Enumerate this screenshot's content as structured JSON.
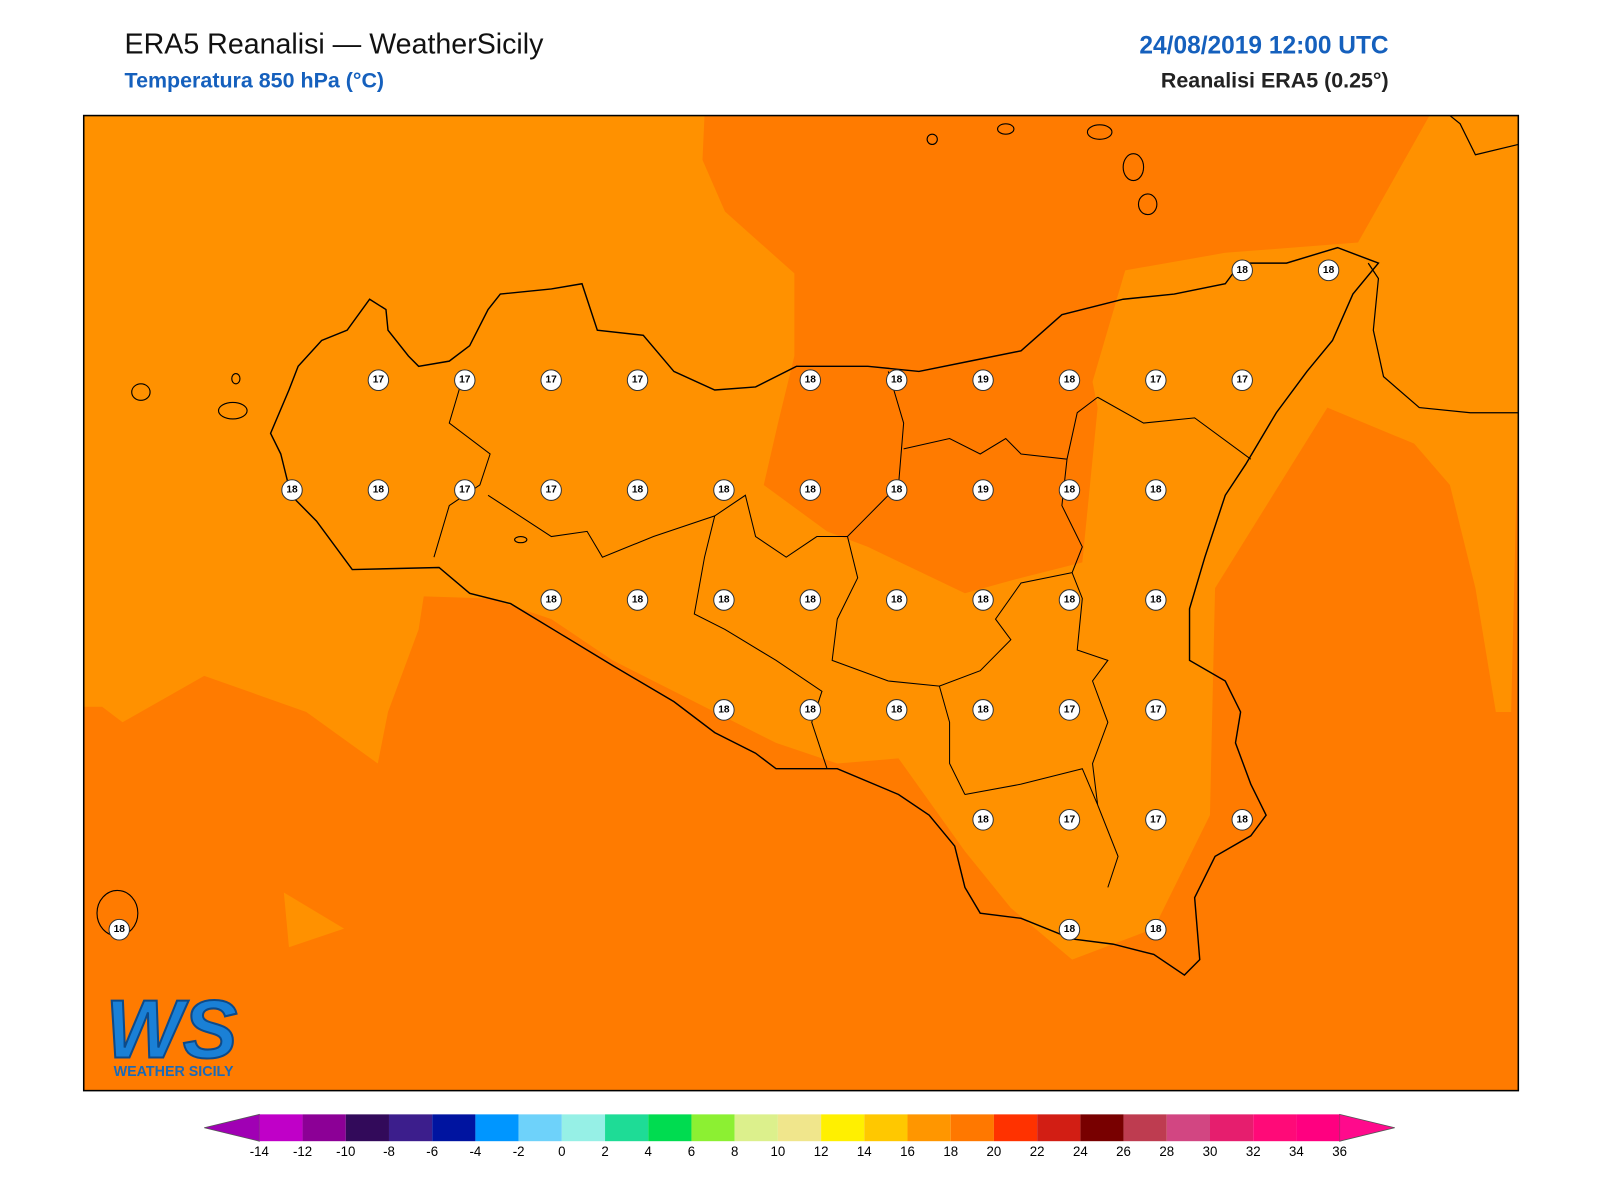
{
  "header": {
    "title": "ERA5 Reanalisi — WeatherSicily",
    "subtitle": "Temperatura 850 hPa (°C)",
    "datetime": "24/08/2019 12:00 UTC",
    "source": "Reanalisi ERA5 (0.25°)"
  },
  "stations": [
    18,
    18,
    17,
    17,
    17,
    17,
    18,
    18,
    19,
    18,
    17,
    17,
    18,
    18,
    17,
    17,
    18,
    18,
    18,
    18,
    19,
    18,
    18,
    18,
    18,
    18,
    18,
    18,
    18,
    18,
    18,
    18,
    18,
    18,
    18,
    17,
    17,
    18,
    17,
    17,
    18,
    18,
    18,
    18
  ],
  "colorbar": {
    "ticks": [
      -14,
      -12,
      -10,
      -8,
      -6,
      -4,
      -2,
      0,
      2,
      4,
      6,
      8,
      10,
      12,
      14,
      16,
      18,
      20,
      22,
      24,
      26,
      28,
      30,
      32,
      34,
      36
    ],
    "colors": [
      "#c000c8",
      "#8c0096",
      "#320a5a",
      "#3c1e8c",
      "#0014a0",
      "#0096ff",
      "#6ed2fa",
      "#96f0e6",
      "#1edc96",
      "#00dc50",
      "#8cf032",
      "#dcf08c",
      "#f0e68c",
      "#fff000",
      "#ffc800",
      "#ff9600",
      "#ff7800",
      "#ff3200",
      "#d21e14",
      "#780000",
      "#be3c50",
      "#d24682",
      "#e61e6e",
      "#ff0a78",
      "#ff0080"
    ],
    "under": "#a000b4",
    "over": "#ff0a8c"
  },
  "logo": {
    "mark": "WS",
    "name": "WEATHER SICILY"
  }
}
